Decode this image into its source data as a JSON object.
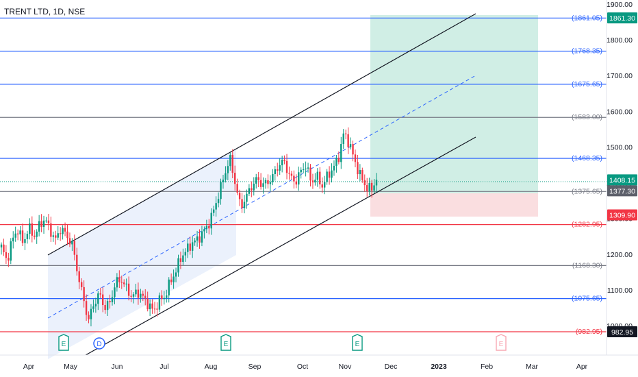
{
  "symbol_title": "TRENT LTD, 1D, NSE",
  "colors": {
    "blue_level": "#2962ff",
    "gray_level": "#787b86",
    "red_level": "#f23645",
    "up_candle": "#089981",
    "down_candle": "#f23645",
    "channel_fill": "#e8eefc",
    "target_zone": "#c8ebe0",
    "stop_zone": "#fadadd"
  },
  "chart_data": {
    "type": "candlestick",
    "y_axis_ticks": [
      "1900.00",
      "1800.00",
      "1700.00",
      "1600.00",
      "1500.00",
      "1400.00",
      "1300.00",
      "1200.00",
      "1100.00",
      "1000.00"
    ],
    "y_axis_tick_values": [
      1900,
      1800,
      1700,
      1600,
      1500,
      1400,
      1300,
      1200,
      1100,
      1000
    ],
    "x_axis_ticks": [
      "Apr",
      "May",
      "Jun",
      "Jul",
      "Aug",
      "Sep",
      "Oct",
      "Nov",
      "Dec",
      "2023",
      "Feb",
      "Mar",
      "Apr"
    ],
    "fib_levels": [
      {
        "text": "(1861.05)",
        "value": 1861.05,
        "color": "blue"
      },
      {
        "text": "(1768.35)",
        "value": 1768.35,
        "color": "blue"
      },
      {
        "text": "(1675.65)",
        "value": 1675.65,
        "color": "blue"
      },
      {
        "text": "(1583.00)",
        "value": 1583.0,
        "color": "gray"
      },
      {
        "text": "(1468.35)",
        "value": 1468.35,
        "color": "blue"
      },
      {
        "text": "(1375.65)",
        "value": 1375.65,
        "color": "gray"
      },
      {
        "text": "(1282.95)",
        "value": 1282.95,
        "color": "red"
      },
      {
        "text": "(1168.30)",
        "value": 1168.3,
        "color": "gray"
      },
      {
        "text": "(1075.65)",
        "value": 1075.65,
        "color": "blue"
      },
      {
        "text": "(982.95)",
        "value": 982.95,
        "color": "red"
      }
    ],
    "price_badges": [
      {
        "text": "1861.30",
        "value": 1861.3,
        "bg": "#089981"
      },
      {
        "text": "1408.15",
        "value": 1408.15,
        "bg": "#089981"
      },
      {
        "text": "1377.30",
        "value": 1377.3,
        "bg": "#5d606b"
      },
      {
        "text": "1309.90",
        "value": 1309.9,
        "bg": "#f23645"
      },
      {
        "text": "982.95",
        "value": 982.95,
        "bg": "#131722"
      }
    ],
    "event_markers": [
      {
        "label": "E",
        "month": "May",
        "kind": "earnings"
      },
      {
        "label": "D",
        "month": "May",
        "kind": "dividend"
      },
      {
        "label": "E",
        "month": "Aug",
        "kind": "earnings"
      },
      {
        "label": "E",
        "month": "Nov",
        "kind": "earnings"
      },
      {
        "label": "E",
        "month": "Feb",
        "kind": "earnings-upcoming"
      }
    ],
    "last_price": 1408.15,
    "approx_close_path": [
      1220,
      1180,
      1240,
      1270,
      1230,
      1275,
      1250,
      1280,
      1300,
      1265,
      1240,
      1275,
      1250,
      1230,
      1150,
      1080,
      1015,
      1060,
      1090,
      1050,
      1065,
      1120,
      1130,
      1105,
      1080,
      1095,
      1080,
      1060,
      1040,
      1070,
      1080,
      1120,
      1150,
      1190,
      1210,
      1230,
      1240,
      1260,
      1280,
      1320,
      1370,
      1420,
      1470,
      1400,
      1330,
      1360,
      1390,
      1410,
      1395,
      1400,
      1420,
      1450,
      1460,
      1420,
      1400,
      1430,
      1450,
      1400,
      1420,
      1390,
      1420,
      1440,
      1470,
      1540,
      1510,
      1460,
      1420,
      1390,
      1380,
      1408
    ]
  }
}
